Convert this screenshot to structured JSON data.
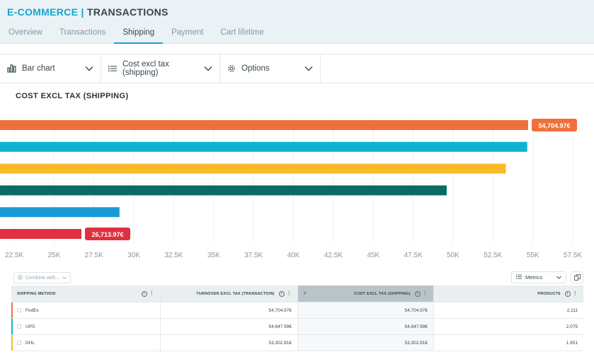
{
  "header": {
    "section": "E-COMMERCE",
    "separator": "|",
    "page": "TRANSACTIONS"
  },
  "tabs": [
    {
      "label": "Overview",
      "active": false
    },
    {
      "label": "Transactions",
      "active": false
    },
    {
      "label": "Shipping",
      "active": true
    },
    {
      "label": "Payment",
      "active": false
    },
    {
      "label": "Cart lifetime",
      "active": false
    }
  ],
  "toolbar": {
    "chart_type": {
      "label": "Bar chart",
      "icon": "bar-chart-icon"
    },
    "metric": {
      "label": "Cost excl tax (shipping)",
      "icon": "list-icon"
    },
    "options": {
      "label": "Options",
      "icon": "gear-icon"
    }
  },
  "chart_title": "COST EXCL TAX (SHIPPING)",
  "chart_data": {
    "type": "bar",
    "orientation": "horizontal",
    "title": "COST EXCL TAX (SHIPPING)",
    "values": [
      54704.97,
      54647.99,
      53302.81,
      49600,
      29100,
      26713.97
    ],
    "colors": [
      "#f0703b",
      "#0fb3d2",
      "#fbb927",
      "#0b6a63",
      "#1a9bd7",
      "#e0303f"
    ],
    "labels": {
      "0": "54,704.97€",
      "5": "26,713.97€"
    },
    "label_colors": {
      "0": "#f0703b",
      "5": "#e0303f"
    },
    "xlim": [
      22500,
      57500
    ],
    "x_ticks": [
      "22.5K",
      "25K",
      "27.5K",
      "30K",
      "32.5K",
      "35K",
      "37.5K",
      "40K",
      "42.5K",
      "45K",
      "47.5K",
      "50K",
      "52.5K",
      "55K",
      "57.5K"
    ],
    "grid": true
  },
  "table_tools": {
    "combine": "Combine with...",
    "metrics": "Metrics"
  },
  "table": {
    "headers": {
      "method": "SHIPPING METHOD",
      "turnover": "TURNOVER EXCL TAX (TRANSACTION)",
      "pin": "P",
      "cost": "COST EXCL TAX (SHIPPING)",
      "products": "PRODUCTS"
    },
    "rows": [
      {
        "method": "FedEx",
        "turnover": "54,704.97€",
        "cost": "54,704.97€",
        "products": "2,111",
        "color": "#f0703b"
      },
      {
        "method": "UPS",
        "turnover": "54,647.99€",
        "cost": "54,647.99€",
        "products": "2,075",
        "color": "#0fb3d2"
      },
      {
        "method": "DHL",
        "turnover": "53,302.81€",
        "cost": "53,302.81€",
        "products": "1,951",
        "color": "#fbb927"
      }
    ]
  }
}
